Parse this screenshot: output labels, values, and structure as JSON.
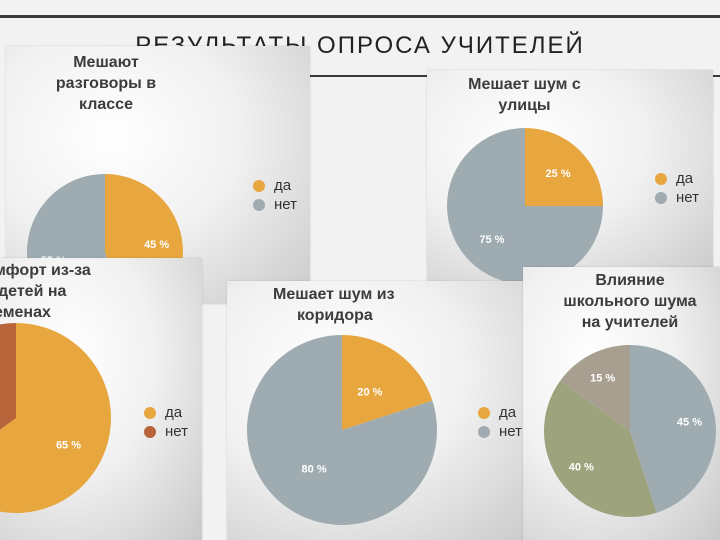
{
  "slide": {
    "title": "РЕЗУЛЬТАТЫ ОПРОСА УЧИТЕЛЕЙ"
  },
  "colors": {
    "yes": "#e8a63e",
    "no": "#9eabb1",
    "no_alt": "#b8643a",
    "green": "#9ca37d",
    "taupe": "#a89f90"
  },
  "chart_data": [
    {
      "type": "pie",
      "title": "Мешают разговоры в классе",
      "title_lines": [
        "Мешают",
        "разговоры в",
        "классе"
      ],
      "legend": [
        "да",
        "нет"
      ],
      "slices": [
        {
          "label": "да",
          "value": 45,
          "text": "45 %",
          "color": "#e8a63e"
        },
        {
          "label": "нет",
          "value": 55,
          "text": "55 %",
          "color": "#9eabb1"
        }
      ]
    },
    {
      "type": "pie",
      "title": "Мешает шум с улицы",
      "title_lines": [
        "Мешает шум с",
        "улицы"
      ],
      "legend": [
        "да",
        "нет"
      ],
      "slices": [
        {
          "label": "да",
          "value": 25,
          "text": "25 %",
          "color": "#e8a63e"
        },
        {
          "label": "нет",
          "value": 75,
          "text": "75 %",
          "color": "#9eabb1"
        }
      ]
    },
    {
      "type": "pie",
      "title": "мфорт из-за детей на еменах",
      "title_lines": [
        "мфорт из-за",
        "детей на",
        "еменах"
      ],
      "legend": [
        "да",
        "нет"
      ],
      "slices": [
        {
          "label": "да",
          "value": 65,
          "text": "65 %",
          "color": "#e8a63e"
        },
        {
          "label": "нет",
          "value": 35,
          "text": "",
          "color": "#b8643a"
        }
      ]
    },
    {
      "type": "pie",
      "title": "Мешает шум из коридора",
      "title_lines": [
        "Мешает шум из",
        "коридора"
      ],
      "legend": [
        "да",
        "нет"
      ],
      "slices": [
        {
          "label": "да",
          "value": 20,
          "text": "20 %",
          "color": "#e8a63e"
        },
        {
          "label": "нет",
          "value": 80,
          "text": "80 %",
          "color": "#9eabb1"
        }
      ]
    },
    {
      "type": "pie",
      "title": "Влияние школьного шума на учителей",
      "title_lines": [
        "Влияние",
        "школьного шума",
        "на учителей"
      ],
      "legend": [],
      "slices": [
        {
          "label": "",
          "value": 45,
          "text": "45 %",
          "color": "#9eabb1"
        },
        {
          "label": "",
          "value": 40,
          "text": "40 %",
          "color": "#9ca37d"
        },
        {
          "label": "",
          "value": 15,
          "text": "15 %",
          "color": "#a89f90"
        }
      ]
    }
  ]
}
